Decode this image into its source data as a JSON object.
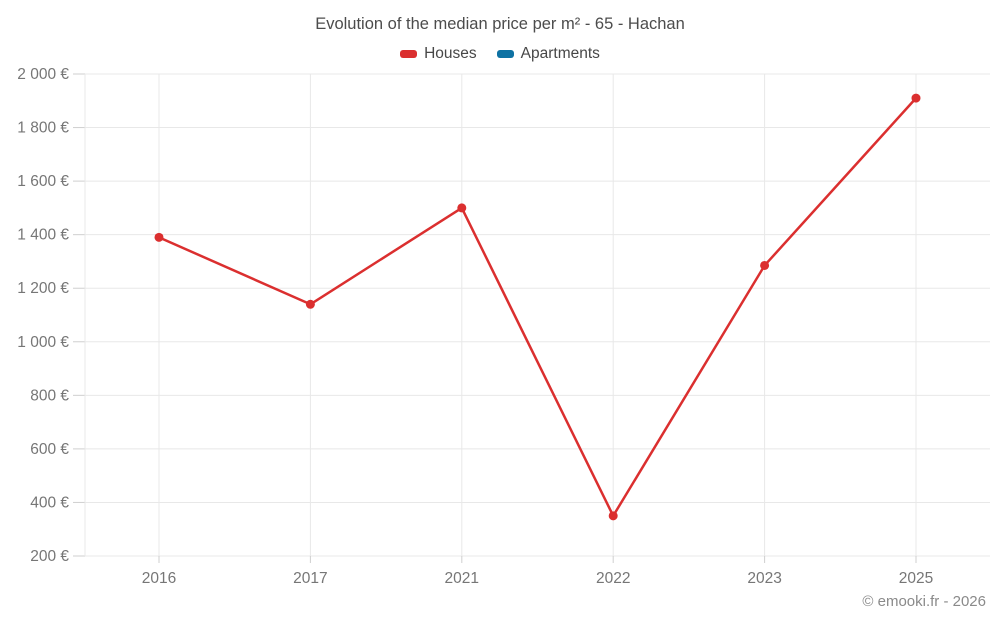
{
  "title": "Evolution of the median price per m² - 65 - Hachan",
  "footer": "© emooki.fr - 2026",
  "legend": [
    {
      "label": "Houses",
      "color": "#db2f2f"
    },
    {
      "label": "Apartments",
      "color": "#0e72a3"
    }
  ],
  "colors": {
    "grid": "#e8e8e8",
    "tick": "#cfcfcf",
    "axis_label": "#767676",
    "houses": "#db2f2f",
    "apartments": "#0e72a3"
  },
  "chart_data": {
    "type": "line",
    "title": "Evolution of the median price per m² - 65 - Hachan",
    "categories": [
      "2016",
      "2017",
      "2021",
      "2022",
      "2023",
      "2025"
    ],
    "series": [
      {
        "name": "Houses",
        "color": "#db2f2f",
        "values": [
          1390,
          1140,
          1500,
          350,
          1285,
          1910
        ]
      },
      {
        "name": "Apartments",
        "color": "#0e72a3",
        "values": []
      }
    ],
    "xlabel": "",
    "ylabel": "",
    "ylim": [
      200,
      2000
    ],
    "yticks": [
      {
        "value": 200,
        "label": "200 €"
      },
      {
        "value": 400,
        "label": "400 €"
      },
      {
        "value": 600,
        "label": "600 €"
      },
      {
        "value": 800,
        "label": "800 €"
      },
      {
        "value": 1000,
        "label": "1 000 €"
      },
      {
        "value": 1200,
        "label": "1 200 €"
      },
      {
        "value": 1400,
        "label": "1 400 €"
      },
      {
        "value": 1600,
        "label": "1 600 €"
      },
      {
        "value": 1800,
        "label": "1 800 €"
      },
      {
        "value": 2000,
        "label": "2 000 €"
      }
    ],
    "grid": true,
    "legend_position": "top",
    "currency": "€"
  }
}
